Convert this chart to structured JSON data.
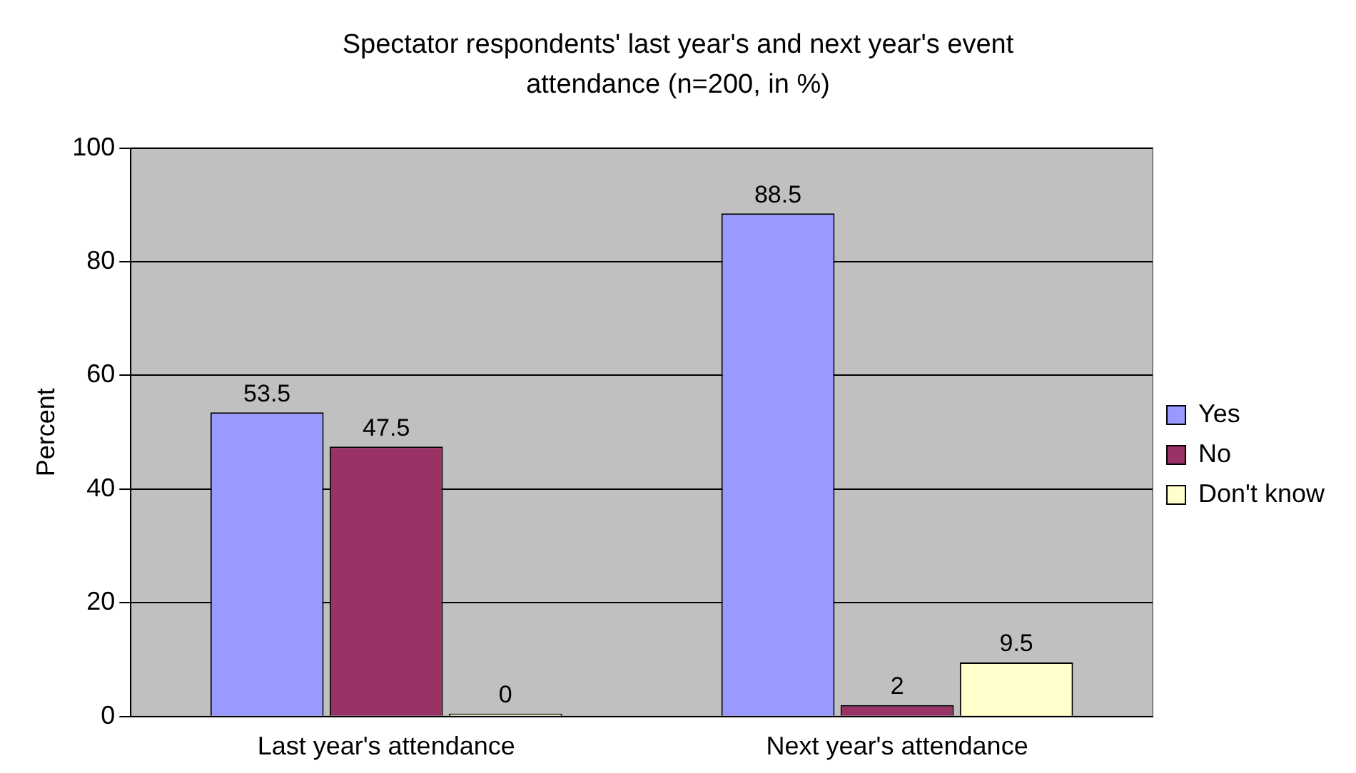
{
  "chart_data": {
    "type": "bar",
    "title": "Spectator respondents' last year's and next year's event attendance (n=200, in %)",
    "ylabel": "Percent",
    "categories": [
      "Last year's attendance",
      "Next year's attendance"
    ],
    "series": [
      {
        "name": "Yes",
        "color": "#9999ff",
        "values": [
          53.5,
          88.5
        ]
      },
      {
        "name": "No",
        "color": "#993366",
        "values": [
          47.5,
          2
        ]
      },
      {
        "name": "Don't know",
        "color": "#ffffcc",
        "values": [
          0,
          9.5
        ]
      }
    ],
    "ylim": [
      0,
      100
    ],
    "yticks": [
      0,
      20,
      40,
      60,
      80,
      100
    ],
    "grid": "y",
    "legend": "right",
    "data_labels": true
  }
}
